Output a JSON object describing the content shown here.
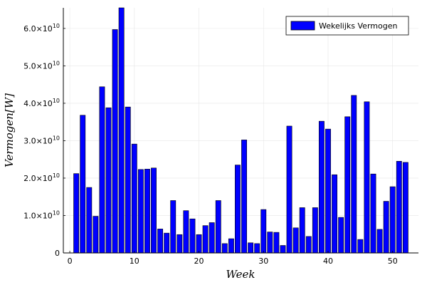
{
  "chart_data": {
    "type": "bar",
    "xlabel": "Week",
    "ylabel": "Vermogen[W]",
    "legend": [
      "Wekelijks Vermogen"
    ],
    "legend_position": "top-right",
    "grid": true,
    "series_color": "#0000ff",
    "xlim": [
      -1,
      54
    ],
    "ylim": [
      0,
      65500000000.0
    ],
    "x_ticks": [
      0,
      10,
      20,
      30,
      40,
      50
    ],
    "y_ticks": [
      0,
      10000000000.0,
      20000000000.0,
      30000000000.0,
      40000000000.0,
      50000000000.0,
      60000000000.0
    ],
    "y_tick_labels": [
      {
        "mantissa": "0",
        "exponent": ""
      },
      {
        "mantissa": "1.0×10",
        "exponent": "10"
      },
      {
        "mantissa": "2.0×10",
        "exponent": "10"
      },
      {
        "mantissa": "3.0×10",
        "exponent": "10"
      },
      {
        "mantissa": "4.0×10",
        "exponent": "10"
      },
      {
        "mantissa": "5.0×10",
        "exponent": "10"
      },
      {
        "mantissa": "6.0×10",
        "exponent": "10"
      }
    ],
    "x": [
      1,
      2,
      3,
      4,
      5,
      6,
      7,
      8,
      9,
      10,
      11,
      12,
      13,
      14,
      15,
      16,
      17,
      18,
      19,
      20,
      21,
      22,
      23,
      24,
      25,
      26,
      27,
      28,
      29,
      30,
      31,
      32,
      33,
      34,
      35,
      36,
      37,
      38,
      39,
      40,
      41,
      42,
      43,
      44,
      45,
      46,
      47,
      48,
      49,
      50,
      51,
      52
    ],
    "values": [
      21200000000.0,
      36800000000.0,
      17500000000.0,
      9800000000.0,
      44400000000.0,
      38800000000.0,
      59700000000.0,
      65500000000.0,
      39000000000.0,
      29100000000.0,
      22300000000.0,
      22400000000.0,
      22700000000.0,
      6400000000.0,
      5300000000.0,
      14000000000.0,
      4900000000.0,
      11300000000.0,
      9100000000.0,
      4900000000.0,
      7300000000.0,
      8100000000.0,
      14000000000.0,
      2500000000.0,
      3800000000.0,
      23500000000.0,
      30200000000.0,
      2700000000.0,
      2500000000.0,
      11600000000.0,
      5600000000.0,
      5500000000.0,
      2000000000.0,
      33900000000.0,
      6700000000.0,
      12100000000.0,
      4400000000.0,
      12100000000.0,
      35200000000.0,
      33100000000.0,
      20900000000.0,
      9500000000.0,
      36400000000.0,
      42100000000.0,
      3600000000.0,
      40400000000.0,
      21100000000.0,
      6300000000.0,
      13800000000.0,
      17700000000.0,
      24500000000.0,
      24200000000.0
    ]
  }
}
